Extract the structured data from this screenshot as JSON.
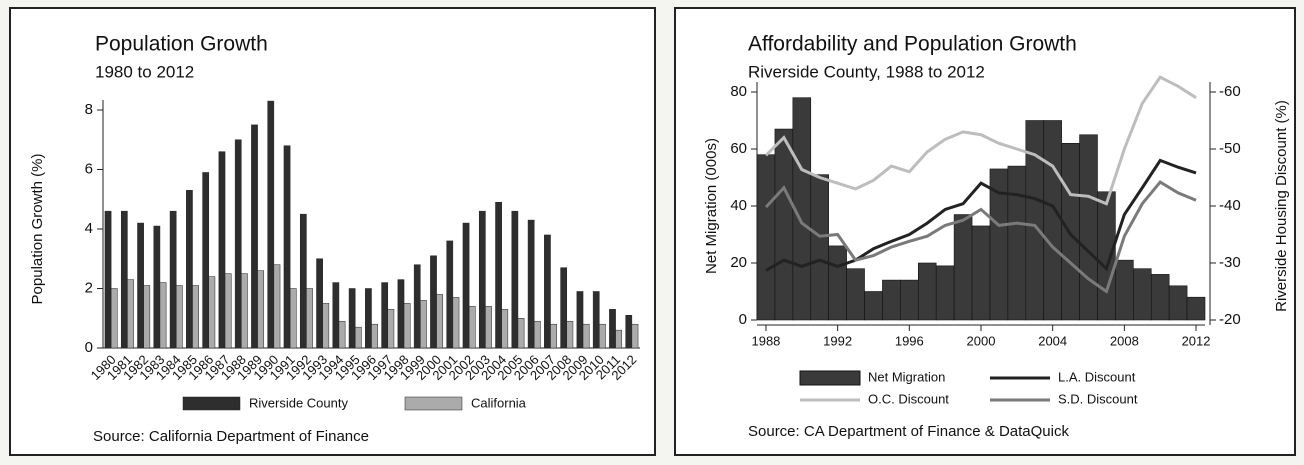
{
  "chart_data": [
    {
      "type": "bar",
      "title": "Population Growth",
      "subtitle": "1980 to 2012",
      "y_label": "Population Growth (%)",
      "categories": [
        "1980",
        "1981",
        "1982",
        "1983",
        "1984",
        "1985",
        "1986",
        "1987",
        "1988",
        "1989",
        "1990",
        "1991",
        "1992",
        "1993",
        "1994",
        "1995",
        "1996",
        "1997",
        "1998",
        "1999",
        "2000",
        "2001",
        "2002",
        "2003",
        "2004",
        "2005",
        "2006",
        "2007",
        "2008",
        "2009",
        "2010",
        "2011",
        "2012"
      ],
      "series": [
        {
          "name": "Riverside County",
          "color": "#2e2e2e",
          "values": [
            4.6,
            4.6,
            4.2,
            4.1,
            4.6,
            5.3,
            5.9,
            6.6,
            7.0,
            7.5,
            8.3,
            6.8,
            4.5,
            3.0,
            2.2,
            2.0,
            2.0,
            2.2,
            2.3,
            2.8,
            3.1,
            3.6,
            4.2,
            4.6,
            4.9,
            4.6,
            4.3,
            3.8,
            2.7,
            1.9,
            1.9,
            1.3,
            1.1
          ]
        },
        {
          "name": "California",
          "color": "#ababab",
          "values": [
            2.0,
            2.3,
            2.1,
            2.2,
            2.1,
            2.1,
            2.4,
            2.5,
            2.5,
            2.6,
            2.8,
            2.0,
            2.0,
            1.5,
            0.9,
            0.7,
            0.8,
            1.3,
            1.5,
            1.6,
            1.8,
            1.7,
            1.4,
            1.4,
            1.3,
            1.0,
            0.9,
            0.8,
            0.9,
            0.8,
            0.8,
            0.6,
            0.8
          ]
        }
      ],
      "ylim": [
        0,
        8
      ],
      "yticks": [
        0,
        2,
        4,
        6,
        8
      ],
      "source": "Source: California Department of Finance"
    },
    {
      "type": "bar_line",
      "title": "Affordability and Population Growth",
      "subtitle": "Riverside County, 1988 to 2012",
      "y_label": "Net Migration (000s)",
      "y2_label": "Riverside Housing Discount (%)",
      "x": [
        1988,
        1989,
        1990,
        1991,
        1992,
        1993,
        1994,
        1995,
        1996,
        1997,
        1998,
        1999,
        2000,
        2001,
        2002,
        2003,
        2004,
        2005,
        2006,
        2007,
        2008,
        2009,
        2010,
        2011,
        2012
      ],
      "xlim": [
        1987.5,
        2012.5
      ],
      "xticks": [
        1988,
        1992,
        1996,
        2000,
        2004,
        2008,
        2012
      ],
      "series": [
        {
          "name": "Net Migration",
          "color": "#3a3a3a",
          "kind": "bar",
          "values": [
            58,
            67,
            78,
            51,
            26,
            18,
            10,
            14,
            14,
            20,
            19,
            37,
            33,
            53,
            54,
            70,
            70,
            62,
            65,
            45,
            21,
            18,
            16,
            12,
            8
          ]
        },
        {
          "name": "L.A. Discount",
          "color": "#222222",
          "kind": "line",
          "axis": "y2",
          "values": [
            -28.7,
            -30.5,
            -29.4,
            -30.5,
            -29.4,
            -30.5,
            -32.5,
            -33.8,
            -35,
            -37,
            -39.4,
            -40.4,
            -44,
            -42.3,
            -42,
            -41.3,
            -40,
            -35,
            -32,
            -29,
            -38.5,
            -43.2,
            -48,
            -46.8,
            -45.8
          ]
        },
        {
          "name": "O.C. Discount",
          "color": "#bdbdbd",
          "kind": "line",
          "axis": "y2",
          "values": [
            -48.9,
            -52,
            -46.4,
            -45,
            -44,
            -43,
            -44.5,
            -47,
            -46,
            -49.5,
            -51.7,
            -53,
            -52.5,
            -51,
            -50,
            -49,
            -47,
            -42,
            -41.7,
            -40.4,
            -50,
            -58,
            -62.6,
            -61,
            -59
          ]
        },
        {
          "name": "S.D. Discount",
          "color": "#7a7a7a",
          "kind": "line",
          "axis": "y2",
          "values": [
            -39.8,
            -43.2,
            -37,
            -34.7,
            -35,
            -30.5,
            -31.3,
            -32.8,
            -33.8,
            -34.7,
            -36.6,
            -37.5,
            -39.4,
            -36.6,
            -37,
            -36.6,
            -32.8,
            -30,
            -27.2,
            -25,
            -34.7,
            -40.4,
            -44.2,
            -42.3,
            -41
          ]
        }
      ],
      "ylim": [
        0,
        80
      ],
      "yticks": [
        0,
        20,
        40,
        60,
        80
      ],
      "y2lim": [
        -20,
        -60
      ],
      "y2ticks": [
        -20,
        -30,
        -40,
        -50,
        -60
      ],
      "source": "Source: CA Department of Finance & DataQuick"
    }
  ]
}
